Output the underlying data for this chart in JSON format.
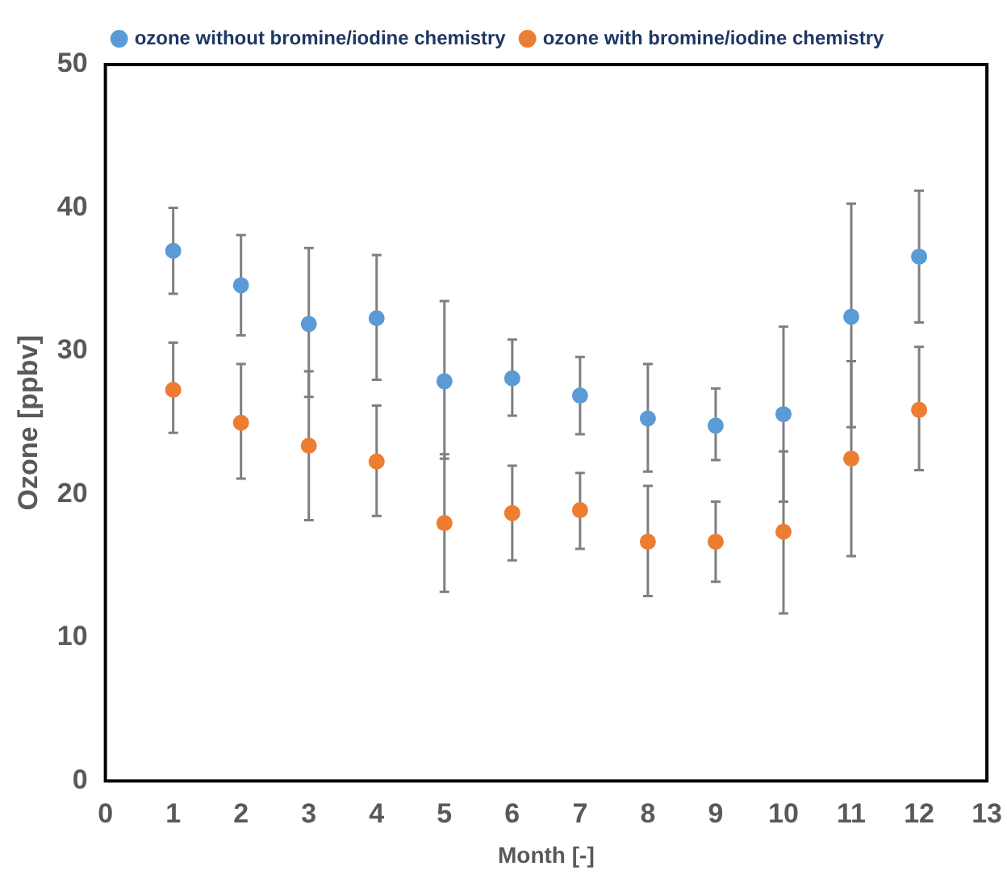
{
  "chart_data": {
    "type": "scatter",
    "xlabel": "Month [-]",
    "ylabel": "Ozone [ppbv]",
    "x": [
      1,
      2,
      3,
      4,
      5,
      6,
      7,
      8,
      9,
      10,
      11,
      12
    ],
    "xlim": [
      0,
      13
    ],
    "xticks": [
      0,
      1,
      2,
      3,
      4,
      5,
      6,
      7,
      8,
      9,
      10,
      11,
      12,
      13
    ],
    "ylim": [
      0,
      50
    ],
    "yticks": [
      0,
      10,
      20,
      30,
      40,
      50
    ],
    "grid": false,
    "legend": "top",
    "marker": "circle",
    "series": [
      {
        "name": "ozone without bromine/iodine chemistry",
        "color": "#5b9bd5",
        "values": [
          37,
          34.6,
          31.9,
          32.3,
          27.9,
          28.1,
          26.9,
          25.3,
          24.8,
          25.6,
          32.4,
          36.6
        ],
        "errors": [
          [
            34,
            40
          ],
          [
            31.1,
            38.1
          ],
          [
            26.8,
            37.2
          ],
          [
            28,
            36.7
          ],
          [
            22.5,
            33.5
          ],
          [
            25.5,
            30.8
          ],
          [
            24.2,
            29.6
          ],
          [
            21.6,
            29.1
          ],
          [
            22.4,
            27.4
          ],
          [
            19.5,
            31.7
          ],
          [
            24.7,
            40.3
          ],
          [
            32,
            41.2
          ]
        ]
      },
      {
        "name": "ozone with bromine/iodine chemistry",
        "color": "#ed7d31",
        "values": [
          27.3,
          25,
          23.4,
          22.3,
          18,
          18.7,
          18.9,
          16.7,
          16.7,
          17.4,
          22.5,
          25.9
        ],
        "errors": [
          [
            24.3,
            30.6
          ],
          [
            21.1,
            29.1
          ],
          [
            18.2,
            28.6
          ],
          [
            18.5,
            26.2
          ],
          [
            13.2,
            22.8
          ],
          [
            15.4,
            22
          ],
          [
            16.2,
            21.5
          ],
          [
            12.9,
            20.6
          ],
          [
            13.9,
            19.5
          ],
          [
            11.7,
            23
          ],
          [
            15.7,
            29.3
          ],
          [
            21.7,
            30.3
          ]
        ]
      }
    ]
  }
}
